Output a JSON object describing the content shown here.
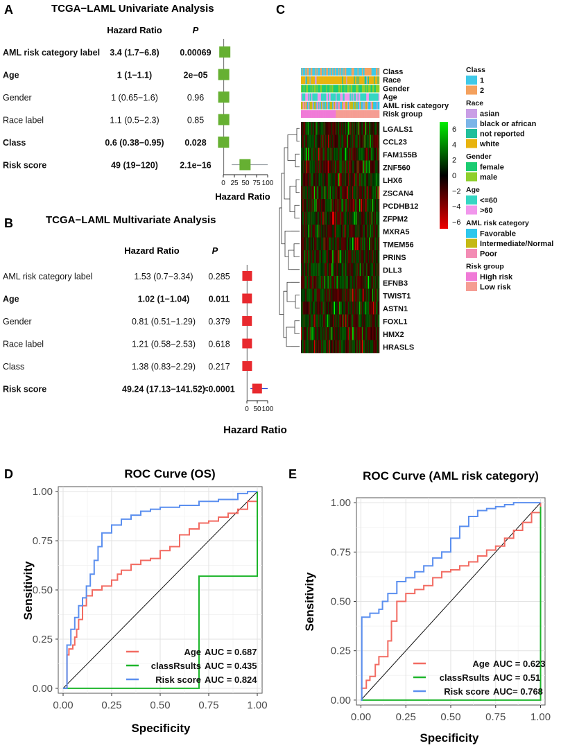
{
  "panel_letters": {
    "a": "A",
    "b": "B",
    "c": "C",
    "d": "D",
    "e": "E"
  },
  "chart_data": [
    {
      "type": "table",
      "id": "univariate",
      "title": "TCGA−LAML Univariate Analysis",
      "col_hr": "Hazard Ratio",
      "col_p": "P",
      "xlabel": "Hazard Ratio",
      "xticks": [
        "0",
        "25",
        "50",
        "75",
        "100"
      ],
      "xlim": [
        0,
        100
      ],
      "rows": [
        {
          "label": "AML risk category label",
          "hr_text": "3.4 (1.7−6.8)",
          "p": "0.00069",
          "bold": true,
          "hr": 3.4,
          "lo": 1.7,
          "hi": 6.8
        },
        {
          "label": "Age",
          "hr_text": "1 (1−1.1)",
          "p": "2e−05",
          "bold": true,
          "hr": 1,
          "lo": 1,
          "hi": 1.1
        },
        {
          "label": "Gender",
          "hr_text": "1 (0.65−1.6)",
          "p": "0.96",
          "bold": false,
          "hr": 1,
          "lo": 0.65,
          "hi": 1.6
        },
        {
          "label": "Race label",
          "hr_text": "1.1 (0.5−2.3)",
          "p": "0.85",
          "bold": false,
          "hr": 1.1,
          "lo": 0.5,
          "hi": 2.3
        },
        {
          "label": "Class",
          "hr_text": "0.6 (0.38−0.95)",
          "p": "0.028",
          "bold": true,
          "hr": 0.6,
          "lo": 0.38,
          "hi": 0.95
        },
        {
          "label": "Risk score",
          "hr_text": "49 (19−120)",
          "p": "2.1e−16",
          "bold": true,
          "hr": 49,
          "lo": 19,
          "hi": 120
        }
      ]
    },
    {
      "type": "table",
      "id": "multivariate",
      "title": "TCGA−LAML Multivariate Analysis",
      "col_hr": "Hazard Ratio",
      "col_p": "P",
      "xlabel": "Hazard Ratio",
      "xticks": [
        "0",
        "50",
        "100"
      ],
      "xlim": [
        0,
        100
      ],
      "rows": [
        {
          "label": "AML risk category label",
          "hr_text": "1.53 (0.7−3.34)",
          "p": "0.285",
          "bold": false,
          "hr": 1.53,
          "lo": 0.7,
          "hi": 3.34
        },
        {
          "label": "Age",
          "hr_text": "1.02 (1−1.04)",
          "p": "0.011",
          "bold": true,
          "hr": 1.02,
          "lo": 1,
          "hi": 1.04
        },
        {
          "label": "Gender",
          "hr_text": "0.81 (0.51−1.29)",
          "p": "0.379",
          "bold": false,
          "hr": 0.81,
          "lo": 0.51,
          "hi": 1.29
        },
        {
          "label": "Race label",
          "hr_text": "1.21 (0.58−2.53)",
          "p": "0.618",
          "bold": false,
          "hr": 1.21,
          "lo": 0.58,
          "hi": 2.53
        },
        {
          "label": "Class",
          "hr_text": "1.38 (0.83−2.29)",
          "p": "0.217",
          "bold": false,
          "hr": 1.38,
          "lo": 0.83,
          "hi": 2.29
        },
        {
          "label": "Risk score",
          "hr_text": "49.24 (17.13−141.52)",
          "p": "<0.0001",
          "bold": true,
          "hr": 49.24,
          "lo": 17.13,
          "hi": 141.52
        }
      ]
    },
    {
      "type": "heatmap",
      "id": "heatmap",
      "annotation_tracks": [
        "Class",
        "Race",
        "Gender",
        "Age",
        "AML risk category",
        "Risk group"
      ],
      "genes": [
        "LGALS1",
        "CCL23",
        "FAM155B",
        "ZNF560",
        "LHX6",
        "ZSCAN4",
        "PCDHB12",
        "ZFPM2",
        "MXRA5",
        "TMEM56",
        "PRINS",
        "DLL3",
        "EFNB3",
        "TWIST1",
        "ASTN1",
        "FOXL1",
        "HMX2",
        "HRASLS"
      ],
      "colorbar_ticks": [
        "6",
        "4",
        "2",
        "0",
        "−2",
        "−4",
        "−6"
      ],
      "colorbar_range": [
        -6,
        6
      ],
      "colors": {
        "high": "#00ee00",
        "mid": "#000000",
        "low": "#ee0000"
      },
      "legend": [
        {
          "title": "Class",
          "items": [
            {
              "label": "1",
              "color": "#3fc9e8"
            },
            {
              "label": "2",
              "color": "#f4a15e"
            }
          ]
        },
        {
          "title": "Race",
          "items": [
            {
              "label": "asian",
              "color": "#c99ee6"
            },
            {
              "label": "black or african",
              "color": "#7bb5e8"
            },
            {
              "label": "not reported",
              "color": "#21bf9b"
            },
            {
              "label": "white",
              "color": "#e8b30e"
            }
          ]
        },
        {
          "title": "Gender",
          "items": [
            {
              "label": "female",
              "color": "#1bcc71"
            },
            {
              "label": "male",
              "color": "#8fcf2c"
            }
          ]
        },
        {
          "title": "Age",
          "items": [
            {
              "label": "<=60",
              "color": "#35d6c3"
            },
            {
              "label": ">60",
              "color": "#f197ec"
            }
          ]
        },
        {
          "title": "AML risk category",
          "items": [
            {
              "label": "Favorable",
              "color": "#2ec7ec"
            },
            {
              "label": "Intermediate/Normal",
              "color": "#c4b914"
            },
            {
              "label": "Poor",
              "color": "#f38cb4"
            }
          ]
        },
        {
          "title": "Risk group",
          "items": [
            {
              "label": "High risk",
              "color": "#f07ad7"
            },
            {
              "label": "Low risk",
              "color": "#f59d93"
            }
          ]
        }
      ]
    },
    {
      "type": "line",
      "id": "roc_os",
      "title": "ROC Curve (OS)",
      "xlabel": "Specificity",
      "ylabel": "Sensitivity",
      "xlim": [
        0,
        1
      ],
      "ylim": [
        0,
        1
      ],
      "ticks": [
        "0.00",
        "0.25",
        "0.50",
        "0.75",
        "1.00"
      ],
      "series": [
        {
          "name": "Age",
          "auc": "AUC = 0.687",
          "color": "#f26b62",
          "x": [
            0,
            0.02,
            0.03,
            0.05,
            0.06,
            0.07,
            0.08,
            0.1,
            0.12,
            0.15,
            0.2,
            0.25,
            0.28,
            0.3,
            0.35,
            0.4,
            0.45,
            0.5,
            0.55,
            0.6,
            0.65,
            0.7,
            0.75,
            0.8,
            0.85,
            0.9,
            0.95,
            1.0
          ],
          "y": [
            0,
            0.17,
            0.2,
            0.22,
            0.26,
            0.3,
            0.35,
            0.42,
            0.47,
            0.5,
            0.52,
            0.55,
            0.58,
            0.6,
            0.63,
            0.65,
            0.66,
            0.7,
            0.72,
            0.78,
            0.81,
            0.84,
            0.85,
            0.87,
            0.89,
            0.91,
            0.95,
            1.0
          ]
        },
        {
          "name": "classRsults",
          "auc": "AUC = 0.435",
          "color": "#1db52b",
          "x": [
            0,
            0.7,
            1.0
          ],
          "y": [
            0,
            0.57,
            1.0
          ]
        },
        {
          "name": "Risk score",
          "auc": "AUC = 0.824",
          "color": "#5b8fef",
          "x": [
            0,
            0.02,
            0.04,
            0.06,
            0.08,
            0.1,
            0.12,
            0.14,
            0.16,
            0.18,
            0.2,
            0.25,
            0.3,
            0.35,
            0.4,
            0.45,
            0.5,
            0.6,
            0.7,
            0.8,
            0.9,
            0.95,
            1.0
          ],
          "y": [
            0,
            0.22,
            0.3,
            0.36,
            0.42,
            0.46,
            0.52,
            0.58,
            0.65,
            0.72,
            0.79,
            0.83,
            0.86,
            0.88,
            0.9,
            0.91,
            0.92,
            0.93,
            0.95,
            0.96,
            0.99,
            1.0,
            1.0
          ]
        }
      ]
    },
    {
      "type": "line",
      "id": "roc_aml",
      "title": "ROC Curve (AML risk category)",
      "xlabel": "Specificity",
      "ylabel": "Sensitivity",
      "xlim": [
        0,
        1
      ],
      "ylim": [
        0,
        1
      ],
      "ticks": [
        "0.00",
        "0.25",
        "0.50",
        "0.75",
        "1.00"
      ],
      "series": [
        {
          "name": "Age",
          "auc": "AUC = 0.623",
          "color": "#f26b62",
          "x": [
            0,
            0.03,
            0.05,
            0.08,
            0.1,
            0.15,
            0.17,
            0.2,
            0.25,
            0.3,
            0.35,
            0.4,
            0.45,
            0.5,
            0.55,
            0.6,
            0.65,
            0.7,
            0.75,
            0.8,
            0.85,
            0.9,
            0.95,
            1.0
          ],
          "y": [
            0.06,
            0.1,
            0.12,
            0.18,
            0.22,
            0.3,
            0.4,
            0.5,
            0.54,
            0.56,
            0.58,
            0.62,
            0.65,
            0.66,
            0.68,
            0.7,
            0.73,
            0.76,
            0.78,
            0.82,
            0.86,
            0.9,
            0.95,
            1.0
          ]
        },
        {
          "name": "classRsults",
          "auc": "AUC = 0.51",
          "color": "#1db52b",
          "x": [
            0,
            1.0
          ],
          "y": [
            0,
            0.98
          ]
        },
        {
          "name": "Risk score",
          "auc": "AUC= 0.768",
          "color": "#5b8fef",
          "x": [
            0,
            0.005,
            0.05,
            0.1,
            0.12,
            0.15,
            0.2,
            0.25,
            0.3,
            0.35,
            0.4,
            0.45,
            0.5,
            0.55,
            0.6,
            0.65,
            0.7,
            0.75,
            0.8,
            0.85,
            0.9,
            0.95,
            1.0
          ],
          "y": [
            0,
            0.42,
            0.44,
            0.46,
            0.5,
            0.54,
            0.6,
            0.62,
            0.65,
            0.68,
            0.72,
            0.75,
            0.82,
            0.88,
            0.93,
            0.96,
            0.97,
            0.98,
            0.99,
            1.0,
            1.0,
            1.0,
            1.0
          ]
        }
      ]
    }
  ]
}
